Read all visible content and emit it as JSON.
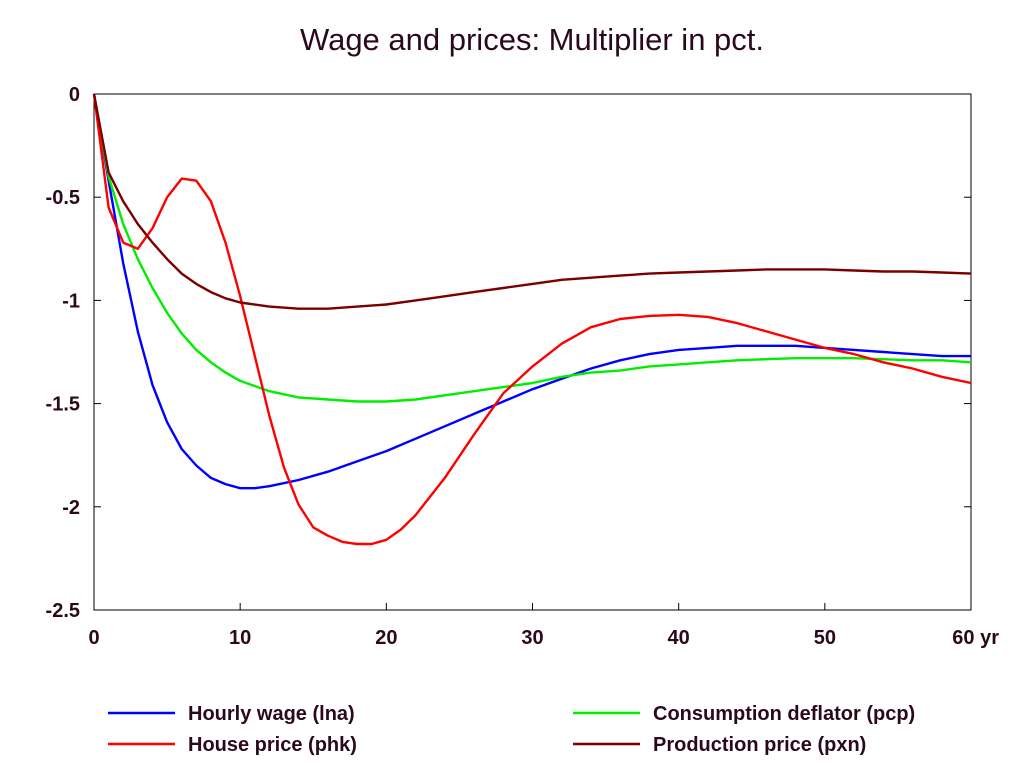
{
  "chart_data": {
    "type": "line",
    "title": "Wage and prices: Multiplier in pct.",
    "xlabel": "",
    "ylabel": "",
    "x_unit_label": "yr",
    "xlim": [
      0,
      60
    ],
    "ylim": [
      -2.5,
      0
    ],
    "xticks": [
      0,
      10,
      20,
      30,
      40,
      50,
      60
    ],
    "xtick_labels": [
      "0",
      "10",
      "20",
      "30",
      "40",
      "50",
      "60 yr"
    ],
    "yticks": [
      0,
      -0.5,
      -1,
      -1.5,
      -2,
      -2.5
    ],
    "ytick_labels": [
      "0",
      "-0.5",
      "-1",
      "-1.5",
      "-2",
      "-2.5"
    ],
    "grid": false,
    "legend_position": "bottom",
    "series": [
      {
        "name": "Hourly wage (lna)",
        "color": "#0000ff",
        "x": [
          0,
          1,
          2,
          3,
          4,
          5,
          6,
          7,
          8,
          9,
          10,
          11,
          12,
          14,
          16,
          18,
          20,
          22,
          24,
          26,
          28,
          30,
          32,
          34,
          36,
          38,
          40,
          42,
          44,
          46,
          48,
          50,
          52,
          54,
          56,
          58,
          60
        ],
        "y": [
          0,
          -0.42,
          -0.82,
          -1.15,
          -1.41,
          -1.59,
          -1.72,
          -1.8,
          -1.86,
          -1.89,
          -1.91,
          -1.91,
          -1.9,
          -1.87,
          -1.83,
          -1.78,
          -1.73,
          -1.67,
          -1.61,
          -1.55,
          -1.49,
          -1.43,
          -1.38,
          -1.33,
          -1.29,
          -1.26,
          -1.24,
          -1.23,
          -1.22,
          -1.22,
          -1.22,
          -1.23,
          -1.24,
          -1.25,
          -1.26,
          -1.27,
          -1.27
        ]
      },
      {
        "name": "Consumption deflator (pcp)",
        "color": "#00ee00",
        "x": [
          0,
          1,
          2,
          3,
          4,
          5,
          6,
          7,
          8,
          9,
          10,
          12,
          14,
          16,
          18,
          20,
          22,
          24,
          26,
          28,
          30,
          32,
          34,
          36,
          38,
          40,
          42,
          44,
          46,
          48,
          50,
          52,
          54,
          56,
          58,
          60
        ],
        "y": [
          0,
          -0.4,
          -0.63,
          -0.8,
          -0.94,
          -1.06,
          -1.16,
          -1.24,
          -1.3,
          -1.35,
          -1.39,
          -1.44,
          -1.47,
          -1.48,
          -1.49,
          -1.49,
          -1.48,
          -1.46,
          -1.44,
          -1.42,
          -1.4,
          -1.37,
          -1.35,
          -1.34,
          -1.32,
          -1.31,
          -1.3,
          -1.29,
          -1.285,
          -1.28,
          -1.28,
          -1.28,
          -1.285,
          -1.29,
          -1.29,
          -1.3
        ]
      },
      {
        "name": "House price (phk)",
        "color": "#ff0000",
        "x": [
          0,
          1,
          2,
          3,
          4,
          5,
          6,
          7,
          8,
          9,
          10,
          11,
          12,
          13,
          14,
          15,
          16,
          17,
          18,
          19,
          20,
          21,
          22,
          24,
          26,
          28,
          30,
          32,
          34,
          36,
          38,
          40,
          42,
          44,
          46,
          48,
          50,
          52,
          54,
          56,
          58,
          60
        ],
        "y": [
          0,
          -0.55,
          -0.72,
          -0.75,
          -0.65,
          -0.5,
          -0.41,
          -0.42,
          -0.52,
          -0.72,
          -0.98,
          -1.27,
          -1.56,
          -1.81,
          -1.99,
          -2.1,
          -2.14,
          -2.17,
          -2.18,
          -2.18,
          -2.16,
          -2.11,
          -2.04,
          -1.86,
          -1.65,
          -1.45,
          -1.32,
          -1.21,
          -1.13,
          -1.09,
          -1.075,
          -1.07,
          -1.08,
          -1.11,
          -1.15,
          -1.19,
          -1.23,
          -1.26,
          -1.3,
          -1.33,
          -1.37,
          -1.4
        ]
      },
      {
        "name": "Production price (pxn)",
        "color": "#7a0000",
        "x": [
          0,
          1,
          2,
          3,
          4,
          5,
          6,
          7,
          8,
          9,
          10,
          12,
          14,
          16,
          18,
          20,
          22,
          24,
          26,
          28,
          30,
          32,
          34,
          36,
          38,
          40,
          42,
          44,
          46,
          48,
          50,
          52,
          54,
          56,
          58,
          60
        ],
        "y": [
          0,
          -0.38,
          -0.52,
          -0.63,
          -0.72,
          -0.8,
          -0.87,
          -0.92,
          -0.96,
          -0.99,
          -1.01,
          -1.03,
          -1.04,
          -1.04,
          -1.03,
          -1.02,
          -1.0,
          -0.98,
          -0.96,
          -0.94,
          -0.92,
          -0.9,
          -0.89,
          -0.88,
          -0.87,
          -0.865,
          -0.86,
          -0.855,
          -0.85,
          -0.85,
          -0.85,
          -0.855,
          -0.86,
          -0.86,
          -0.865,
          -0.87
        ]
      }
    ]
  }
}
